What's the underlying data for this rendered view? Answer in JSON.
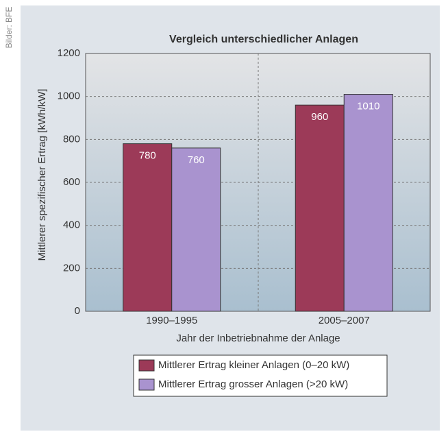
{
  "credit": "Bilder: BFE",
  "chart_data": {
    "type": "bar",
    "title": "Vergleich unterschiedlicher Anlagen",
    "y_label": "Mittlerer spezifischer Ertrag [kWh/kW]",
    "x_label": "Jahr der Inbetriebnahme der Anlage",
    "categories": [
      "1990–1995",
      "2005–2007"
    ],
    "series": [
      {
        "name": "Mittlerer Ertrag kleiner Anlagen (0–20 kW)",
        "color": "#9c3a58",
        "values": [
          780,
          960
        ]
      },
      {
        "name": "Mittlerer Ertrag grosser Anlagen (>20 kW)",
        "color": "#a993cf",
        "values": [
          760,
          1010
        ]
      }
    ],
    "ylim": [
      0,
      1200
    ],
    "yticks": [
      0,
      200,
      400,
      600,
      800,
      1000,
      1200
    ],
    "grid": true,
    "legend": "bottom"
  }
}
